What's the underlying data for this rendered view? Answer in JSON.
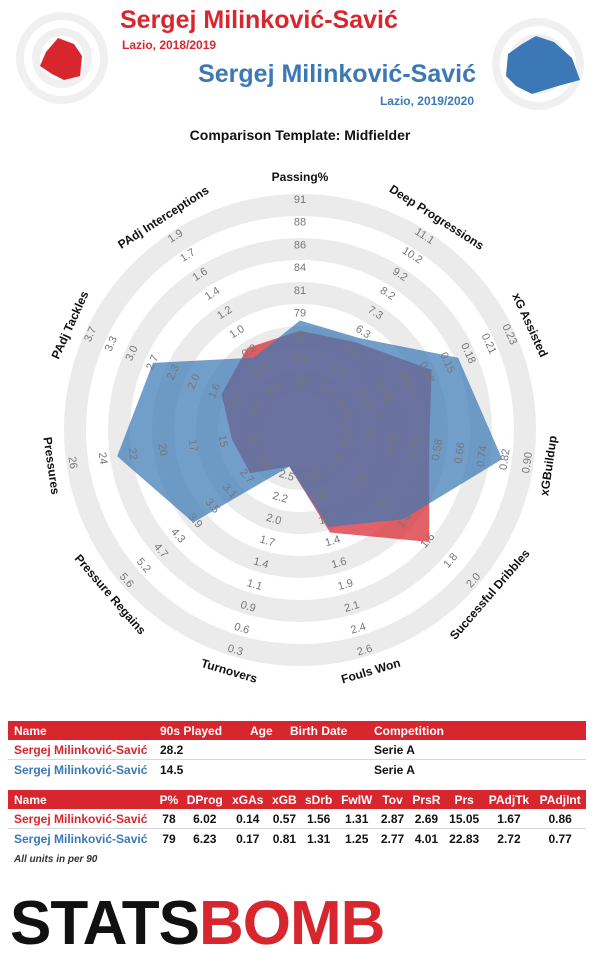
{
  "header": {
    "player1": {
      "name": "Sergej Milinković-Savić",
      "season": "Lazio, 2018/2019",
      "color": "#d8262e"
    },
    "player2": {
      "name": "Sergej Milinković-Savić",
      "season": "Lazio, 2019/2020",
      "color": "#3c78b5"
    },
    "template_title": "Comparison Template: Midfielder"
  },
  "chart_data": {
    "type": "radar",
    "title": "Comparison Template: Midfielder",
    "axes": [
      {
        "label": "Passing%",
        "ticks": [
          "72",
          "74",
          "77",
          "79",
          "81",
          "84",
          "86",
          "88",
          "91"
        ],
        "min": 72,
        "max": 91
      },
      {
        "label": "Deep Progressions",
        "ticks": [
          "3.4",
          "4.4",
          "5.3",
          "6.3",
          "7.3",
          "8.2",
          "9.2",
          "10.2",
          "11.1"
        ],
        "min": 3.4,
        "max": 11.1
      },
      {
        "label": "xG Assisted",
        "ticks": [
          "0.03",
          "0.05",
          "0.08",
          "0.10",
          "0.13",
          "0.15",
          "0.18",
          "0.21",
          "0.23"
        ],
        "min": 0.03,
        "max": 0.23
      },
      {
        "label": "xGBuildup",
        "ticks": [
          "0.27",
          "0.35",
          "0.42",
          "0.50",
          "0.58",
          "0.66",
          "0.74",
          "0.82",
          "0.90"
        ],
        "min": 0.27,
        "max": 0.9
      },
      {
        "label": "Successful Dribbles",
        "ticks": [
          "0.6",
          "0.9",
          "1.2",
          "1.4",
          "1.6",
          "1.8",
          "2.0"
        ],
        "min": 0.6,
        "max": 2.0
      },
      {
        "label": "Fouls Won",
        "ticks": [
          "0.6",
          "0.9",
          "1.2",
          "1.4",
          "1.6",
          "1.9",
          "2.1",
          "2.4",
          "2.6"
        ],
        "min": 0.6,
        "max": 2.6
      },
      {
        "label": "Turnovers",
        "ticks": [
          "2.5",
          "2.2",
          "2.0",
          "1.7",
          "1.4",
          "1.1",
          "0.9",
          "0.6",
          "0.3"
        ],
        "min": 2.5,
        "max": 0.3
      },
      {
        "label": "Pressure Regains",
        "ticks": [
          "2.2",
          "2.7",
          "3.1",
          "3.5",
          "3.9",
          "4.3",
          "4.7",
          "5.2",
          "5.6"
        ],
        "min": 2.2,
        "max": 5.6
      },
      {
        "label": "Pressures",
        "ticks": [
          "13",
          "15",
          "17",
          "20",
          "22",
          "24",
          "26"
        ],
        "min": 13,
        "max": 26
      },
      {
        "label": "PAdj Tackles",
        "ticks": [
          "1.0",
          "1.3",
          "1.6",
          "2.0",
          "2.3",
          "2.7",
          "3.0",
          "3.3",
          "3.7"
        ],
        "min": 1.0,
        "max": 3.7
      },
      {
        "label": "PAdj Interceptions",
        "ticks": [
          "0.4",
          "0.6",
          "0.8",
          "1.0",
          "1.2",
          "1.4",
          "1.6",
          "1.7",
          "1.9"
        ],
        "min": 0.4,
        "max": 1.9
      }
    ],
    "series": [
      {
        "name": "Sergej Milinković-Savić",
        "color": "#d8262e",
        "values": [
          78,
          6.02,
          0.14,
          0.57,
          1.56,
          1.31,
          2.87,
          2.69,
          15.05,
          1.67,
          0.86
        ]
      },
      {
        "name": "Sergej Milinković-Savić",
        "color": "#3c78b5",
        "values": [
          79,
          6.23,
          0.17,
          0.81,
          1.31,
          1.25,
          2.77,
          4.01,
          22.83,
          2.72,
          0.77
        ]
      }
    ]
  },
  "info_table": {
    "headers": [
      "Name",
      "90s Played",
      "Age",
      "Birth Date",
      "Competition"
    ],
    "rows": [
      [
        "Sergej Milinković-Savić",
        "28.2",
        "",
        "",
        "Serie A"
      ],
      [
        "Sergej Milinković-Savić",
        "14.5",
        "",
        "",
        "Serie A"
      ]
    ]
  },
  "stats_table": {
    "headers": [
      "Name",
      "P%",
      "DProg",
      "xGAs",
      "xGB",
      "sDrb",
      "FwlW",
      "Tov",
      "PrsR",
      "Prs",
      "PAdjTk",
      "PAdjInt"
    ],
    "rows": [
      [
        "Sergej Milinković-Savić",
        "78",
        "6.02",
        "0.14",
        "0.57",
        "1.56",
        "1.31",
        "2.87",
        "2.69",
        "15.05",
        "1.67",
        "0.86"
      ],
      [
        "Sergej Milinković-Savić",
        "79",
        "6.23",
        "0.17",
        "0.81",
        "1.31",
        "1.25",
        "2.77",
        "4.01",
        "22.83",
        "2.72",
        "0.77"
      ]
    ]
  },
  "footnote": "All units in per 90",
  "logo": {
    "part1": "STATS",
    "part2": "BOMB"
  }
}
